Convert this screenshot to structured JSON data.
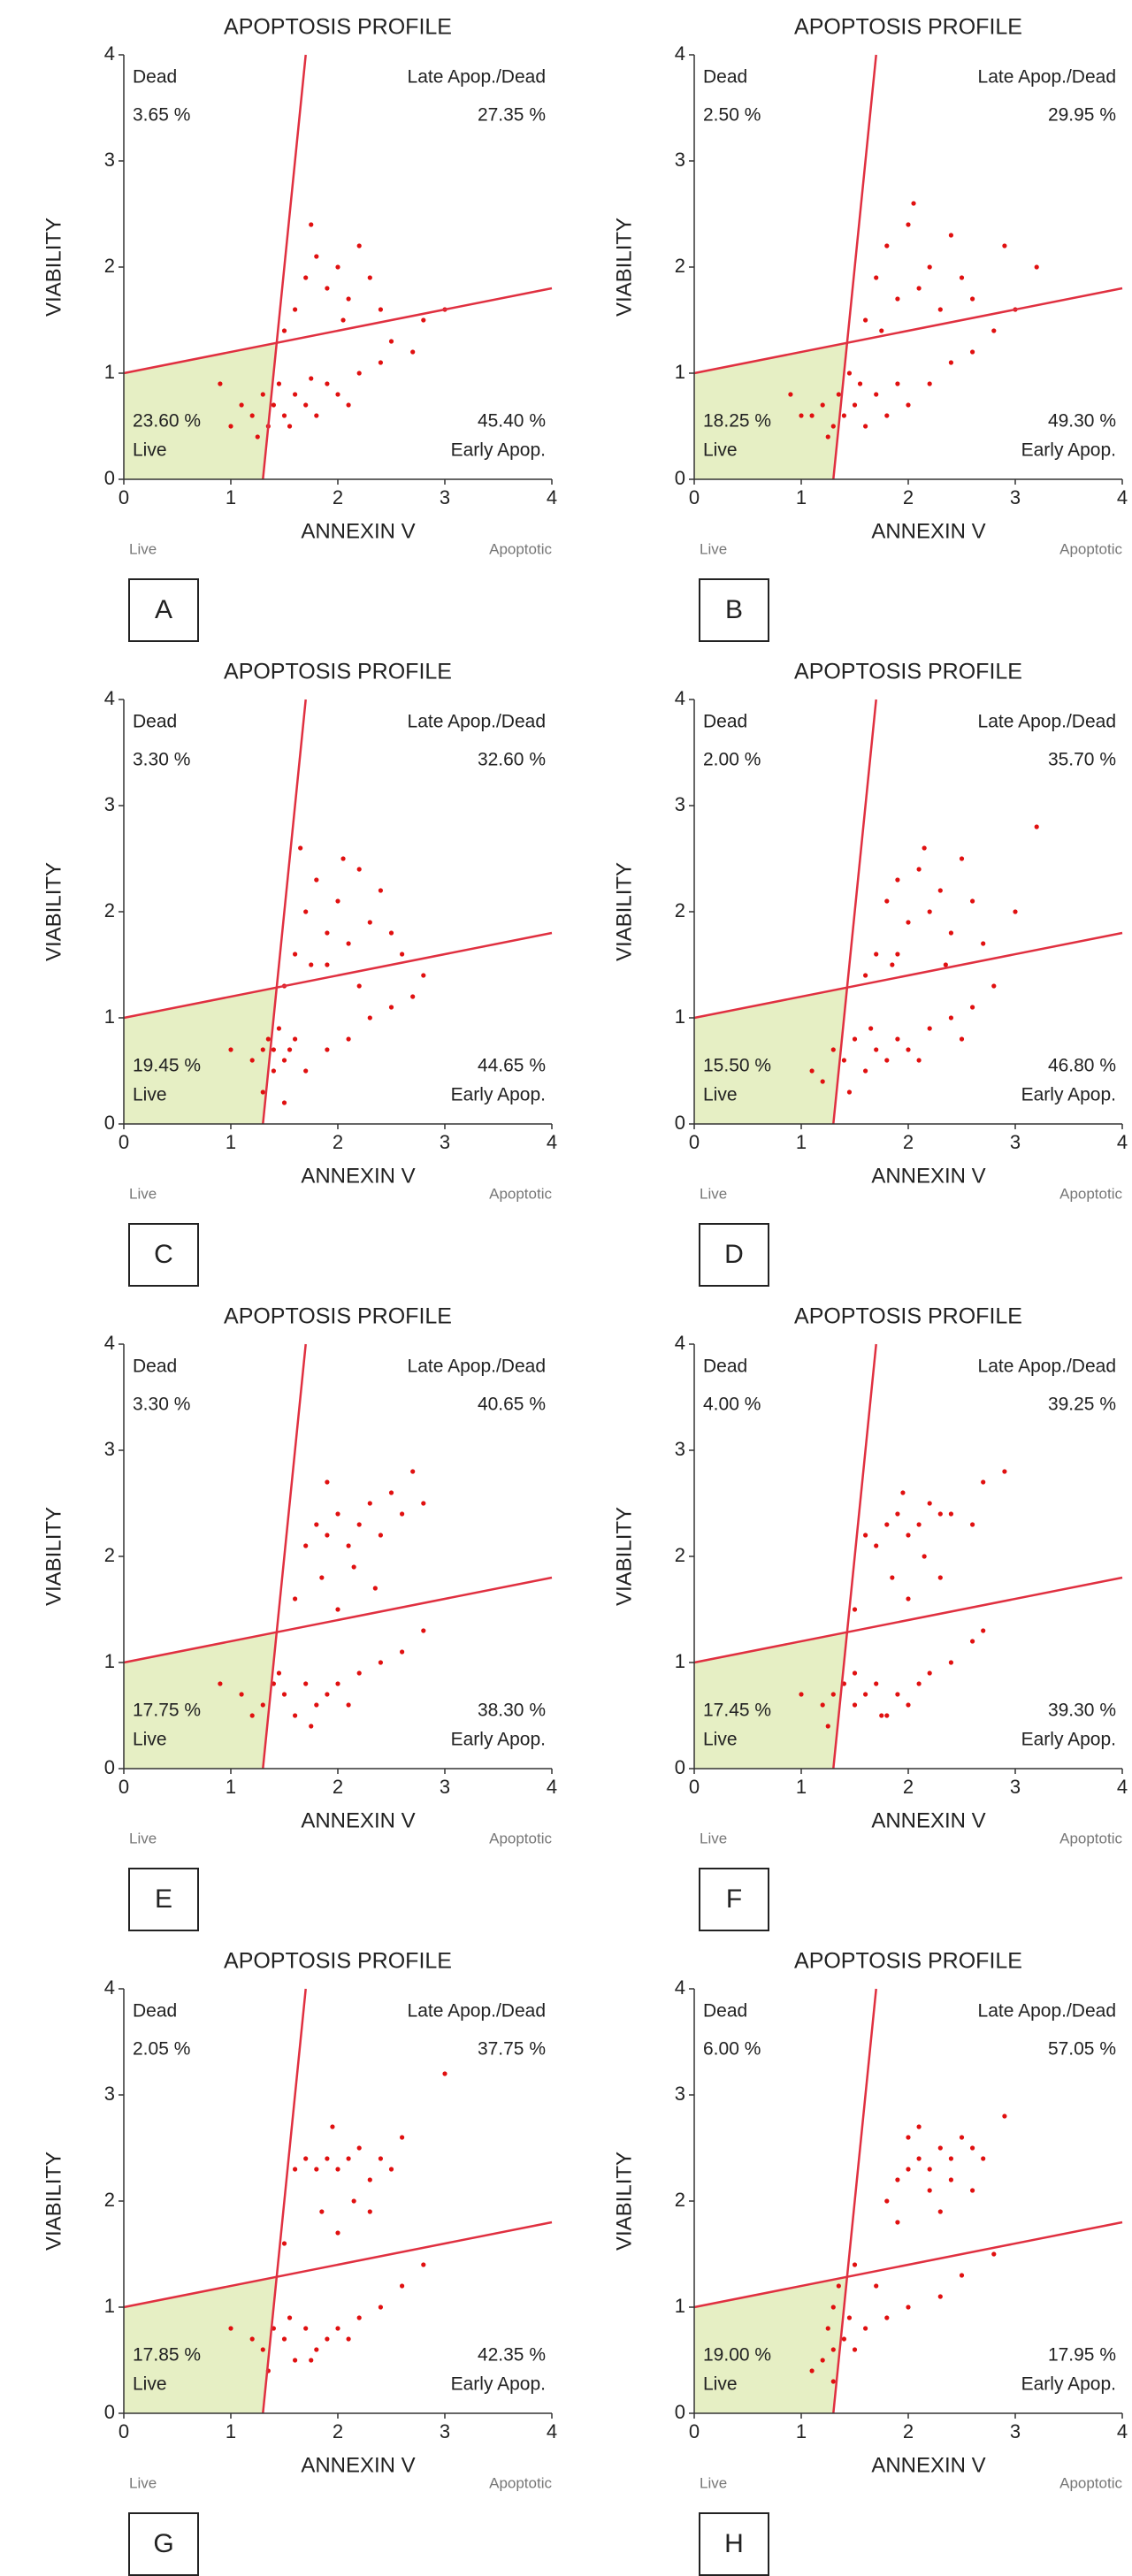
{
  "chart_data": [
    {
      "type": "scatter",
      "title": "APOPTOSIS PROFILE",
      "x_label": "ANNEXIN V",
      "y_label": "VIABILITY",
      "x_end_labels": [
        "Live",
        "Apoptotic"
      ],
      "panel_label": "A",
      "quadrant_names": [
        "Dead",
        "Late Apop./Dead",
        "Live",
        "Early Apop."
      ],
      "quadrant_values": [
        3.65,
        27.35,
        23.6,
        45.4
      ],
      "quadrant_value_labels": [
        "3.65 %",
        "27.35 %",
        "23.60 %",
        "45.40 %"
      ],
      "color": "#e01010",
      "gate_color": "#e03040",
      "live_color": "#e6efc4",
      "xlim": [
        0,
        4
      ],
      "ylim": [
        0,
        4
      ],
      "xticks": [
        0,
        1,
        2,
        3,
        4
      ],
      "yticks": [
        0,
        1,
        2,
        3,
        4
      ],
      "gates": [
        {
          "x": [
            1.3,
            1.7
          ],
          "y": [
            0,
            4
          ]
        },
        {
          "x": [
            0,
            4
          ],
          "y": [
            1,
            1.8
          ]
        }
      ],
      "x": [
        1.1,
        1.2,
        1.3,
        1.35,
        1.4,
        1.45,
        1.5,
        1.6,
        1.7,
        1.8,
        1.9,
        2.0,
        2.2,
        2.4,
        1.25,
        1.55,
        1.75,
        2.1,
        1.6,
        1.7,
        1.8,
        1.9,
        2.0,
        2.1,
        2.2,
        2.3,
        2.4,
        1.5,
        1.75,
        2.05,
        2.5,
        2.7,
        0.9,
        1.0,
        2.8,
        3.0
      ],
      "y": [
        0.7,
        0.6,
        0.8,
        0.5,
        0.7,
        0.9,
        0.6,
        0.8,
        0.7,
        0.6,
        0.9,
        0.8,
        1.0,
        1.1,
        0.4,
        0.5,
        0.95,
        0.7,
        1.6,
        1.9,
        2.1,
        1.8,
        2.0,
        1.7,
        2.2,
        1.9,
        1.6,
        1.4,
        2.4,
        1.5,
        1.3,
        1.2,
        0.9,
        0.5,
        1.5,
        1.6
      ]
    },
    {
      "type": "scatter",
      "title": "APOPTOSIS PROFILE",
      "x_label": "ANNEXIN V",
      "y_label": "VIABILITY",
      "x_end_labels": [
        "Live",
        "Apoptotic"
      ],
      "panel_label": "B",
      "quadrant_names": [
        "Dead",
        "Late Apop./Dead",
        "Live",
        "Early Apop."
      ],
      "quadrant_values": [
        2.5,
        29.95,
        18.25,
        49.3
      ],
      "quadrant_value_labels": [
        "2.50 %",
        "29.95 %",
        "18.25 %",
        "49.30 %"
      ],
      "color": "#e01010",
      "gate_color": "#e03040",
      "live_color": "#e6efc4",
      "xlim": [
        0,
        4
      ],
      "ylim": [
        0,
        4
      ],
      "xticks": [
        0,
        1,
        2,
        3,
        4
      ],
      "yticks": [
        0,
        1,
        2,
        3,
        4
      ],
      "gates": [
        {
          "x": [
            1.3,
            1.7
          ],
          "y": [
            0,
            4
          ]
        },
        {
          "x": [
            0,
            4
          ],
          "y": [
            1,
            1.8
          ]
        }
      ],
      "x": [
        1.1,
        1.2,
        1.3,
        1.35,
        1.4,
        1.5,
        1.6,
        1.7,
        1.8,
        1.9,
        2.0,
        2.2,
        2.4,
        2.6,
        2.8,
        3.0,
        1.25,
        1.55,
        1.6,
        1.7,
        1.8,
        1.9,
        2.0,
        2.1,
        2.2,
        2.3,
        2.4,
        2.5,
        1.75,
        2.05,
        2.6,
        2.9,
        0.9,
        1.0,
        3.2,
        1.45
      ],
      "y": [
        0.6,
        0.7,
        0.5,
        0.8,
        0.6,
        0.7,
        0.5,
        0.8,
        0.6,
        0.9,
        0.7,
        0.9,
        1.1,
        1.2,
        1.4,
        1.6,
        0.4,
        0.9,
        1.5,
        1.9,
        2.2,
        1.7,
        2.4,
        1.8,
        2.0,
        1.6,
        2.3,
        1.9,
        1.4,
        2.6,
        1.7,
        2.2,
        0.8,
        0.6,
        2.0,
        1.0
      ]
    },
    {
      "type": "scatter",
      "title": "APOPTOSIS PROFILE",
      "x_label": "ANNEXIN V",
      "y_label": "VIABILITY",
      "x_end_labels": [
        "Live",
        "Apoptotic"
      ],
      "panel_label": "C",
      "quadrant_names": [
        "Dead",
        "Late Apop./Dead",
        "Live",
        "Early Apop."
      ],
      "quadrant_values": [
        3.3,
        32.6,
        19.45,
        44.65
      ],
      "quadrant_value_labels": [
        "3.30 %",
        "32.60 %",
        "19.45 %",
        "44.65 %"
      ],
      "color": "#e01010",
      "gate_color": "#e03040",
      "live_color": "#e6efc4",
      "xlim": [
        0,
        4
      ],
      "ylim": [
        0,
        4
      ],
      "xticks": [
        0,
        1,
        2,
        3,
        4
      ],
      "yticks": [
        0,
        1,
        2,
        3,
        4
      ],
      "gates": [
        {
          "x": [
            1.3,
            1.7
          ],
          "y": [
            0,
            4
          ]
        },
        {
          "x": [
            0,
            4
          ],
          "y": [
            1,
            1.8
          ]
        }
      ],
      "x": [
        1.2,
        1.3,
        1.35,
        1.4,
        1.4,
        1.45,
        1.5,
        1.55,
        1.6,
        1.7,
        1.9,
        2.1,
        2.3,
        2.5,
        2.7,
        1.0,
        1.3,
        1.5,
        1.6,
        1.7,
        1.8,
        1.9,
        2.0,
        2.1,
        2.2,
        2.3,
        2.4,
        2.5,
        1.75,
        2.05,
        2.6,
        2.8,
        1.5,
        1.9,
        2.2,
        1.65
      ],
      "y": [
        0.6,
        0.7,
        0.8,
        0.5,
        0.7,
        0.9,
        0.6,
        0.7,
        0.8,
        0.5,
        0.7,
        0.8,
        1.0,
        1.1,
        1.2,
        0.7,
        0.3,
        0.2,
        1.6,
        2.0,
        2.3,
        1.8,
        2.1,
        1.7,
        2.4,
        1.9,
        2.2,
        1.8,
        1.5,
        2.5,
        1.6,
        1.4,
        1.3,
        1.5,
        1.3,
        2.6
      ]
    },
    {
      "type": "scatter",
      "title": "APOPTOSIS PROFILE",
      "x_label": "ANNEXIN V",
      "y_label": "VIABILITY",
      "x_end_labels": [
        "Live",
        "Apoptotic"
      ],
      "panel_label": "D",
      "quadrant_names": [
        "Dead",
        "Late Apop./Dead",
        "Live",
        "Early Apop."
      ],
      "quadrant_values": [
        2.0,
        35.7,
        15.5,
        46.8
      ],
      "quadrant_value_labels": [
        "2.00 %",
        "35.70 %",
        "15.50 %",
        "46.80 %"
      ],
      "color": "#e01010",
      "gate_color": "#e03040",
      "live_color": "#e6efc4",
      "xlim": [
        0,
        4
      ],
      "ylim": [
        0,
        4
      ],
      "xticks": [
        0,
        1,
        2,
        3,
        4
      ],
      "yticks": [
        0,
        1,
        2,
        3,
        4
      ],
      "gates": [
        {
          "x": [
            1.3,
            1.7
          ],
          "y": [
            0,
            4
          ]
        },
        {
          "x": [
            0,
            4
          ],
          "y": [
            1,
            1.8
          ]
        }
      ],
      "x": [
        1.1,
        1.3,
        1.4,
        1.5,
        1.6,
        1.7,
        1.8,
        1.9,
        2.0,
        2.2,
        2.4,
        2.6,
        2.8,
        1.2,
        1.45,
        1.65,
        2.1,
        2.5,
        1.7,
        1.8,
        1.9,
        2.0,
        2.1,
        2.2,
        2.3,
        2.4,
        2.5,
        2.6,
        1.85,
        2.15,
        2.7,
        3.0,
        1.6,
        1.9,
        2.35,
        3.2
      ],
      "y": [
        0.5,
        0.7,
        0.6,
        0.8,
        0.5,
        0.7,
        0.6,
        0.8,
        0.7,
        0.9,
        1.0,
        1.1,
        1.3,
        0.4,
        0.3,
        0.9,
        0.6,
        0.8,
        1.6,
        2.1,
        2.3,
        1.9,
        2.4,
        2.0,
        2.2,
        1.8,
        2.5,
        2.1,
        1.5,
        2.6,
        1.7,
        2.0,
        1.4,
        1.6,
        1.5,
        2.8
      ]
    },
    {
      "type": "scatter",
      "title": "APOPTOSIS PROFILE",
      "x_label": "ANNEXIN V",
      "y_label": "VIABILITY",
      "x_end_labels": [
        "Live",
        "Apoptotic"
      ],
      "panel_label": "E",
      "quadrant_names": [
        "Dead",
        "Late Apop./Dead",
        "Live",
        "Early Apop."
      ],
      "quadrant_values": [
        3.3,
        40.65,
        17.75,
        38.3
      ],
      "quadrant_value_labels": [
        "3.30 %",
        "40.65 %",
        "17.75 %",
        "38.30 %"
      ],
      "color": "#e01010",
      "gate_color": "#e03040",
      "live_color": "#e6efc4",
      "xlim": [
        0,
        4
      ],
      "ylim": [
        0,
        4
      ],
      "xticks": [
        0,
        1,
        2,
        3,
        4
      ],
      "yticks": [
        0,
        1,
        2,
        3,
        4
      ],
      "gates": [
        {
          "x": [
            1.3,
            1.7
          ],
          "y": [
            0,
            4
          ]
        },
        {
          "x": [
            0,
            4
          ],
          "y": [
            1,
            1.8
          ]
        }
      ],
      "x": [
        1.1,
        1.3,
        1.4,
        1.5,
        1.6,
        1.7,
        1.8,
        1.9,
        2.0,
        2.2,
        2.4,
        2.6,
        1.2,
        1.45,
        1.75,
        2.1,
        2.8,
        0.9,
        1.7,
        1.8,
        1.9,
        2.0,
        2.1,
        2.2,
        2.3,
        2.4,
        2.5,
        2.6,
        1.85,
        2.15,
        2.7,
        2.8,
        1.6,
        2.0,
        2.35,
        1.9
      ],
      "y": [
        0.7,
        0.6,
        0.8,
        0.7,
        0.5,
        0.8,
        0.6,
        0.7,
        0.8,
        0.9,
        1.0,
        1.1,
        0.5,
        0.9,
        0.4,
        0.6,
        1.3,
        0.8,
        2.1,
        2.3,
        2.2,
        2.4,
        2.1,
        2.3,
        2.5,
        2.2,
        2.6,
        2.4,
        1.8,
        1.9,
        2.8,
        2.5,
        1.6,
        1.5,
        1.7,
        2.7
      ]
    },
    {
      "type": "scatter",
      "title": "APOPTOSIS PROFILE",
      "x_label": "ANNEXIN V",
      "y_label": "VIABILITY",
      "x_end_labels": [
        "Live",
        "Apoptotic"
      ],
      "panel_label": "F",
      "quadrant_names": [
        "Dead",
        "Late Apop./Dead",
        "Live",
        "Early Apop."
      ],
      "quadrant_values": [
        4.0,
        39.25,
        17.45,
        39.3
      ],
      "quadrant_value_labels": [
        "4.00 %",
        "39.25 %",
        "17.45 %",
        "39.30 %"
      ],
      "color": "#e01010",
      "gate_color": "#e03040",
      "live_color": "#e6efc4",
      "xlim": [
        0,
        4
      ],
      "ylim": [
        0,
        4
      ],
      "xticks": [
        0,
        1,
        2,
        3,
        4
      ],
      "yticks": [
        0,
        1,
        2,
        3,
        4
      ],
      "gates": [
        {
          "x": [
            1.3,
            1.7
          ],
          "y": [
            0,
            4
          ]
        },
        {
          "x": [
            0,
            4
          ],
          "y": [
            1,
            1.8
          ]
        }
      ],
      "x": [
        1.2,
        1.3,
        1.4,
        1.5,
        1.6,
        1.7,
        1.8,
        1.9,
        2.0,
        2.2,
        2.4,
        2.6,
        1.25,
        1.5,
        1.75,
        2.1,
        2.7,
        1.0,
        1.6,
        1.7,
        1.8,
        1.9,
        2.0,
        2.1,
        2.2,
        2.3,
        2.4,
        2.6,
        1.85,
        2.15,
        2.7,
        2.9,
        1.5,
        2.0,
        2.3,
        1.95
      ],
      "y": [
        0.6,
        0.7,
        0.8,
        0.6,
        0.7,
        0.8,
        0.5,
        0.7,
        0.6,
        0.9,
        1.0,
        1.2,
        0.4,
        0.9,
        0.5,
        0.8,
        1.3,
        0.7,
        2.2,
        2.1,
        2.3,
        2.4,
        2.2,
        2.3,
        2.5,
        2.4,
        2.4,
        2.3,
        1.8,
        2.0,
        2.7,
        2.8,
        1.5,
        1.6,
        1.8,
        2.6
      ]
    },
    {
      "type": "scatter",
      "title": "APOPTOSIS PROFILE",
      "x_label": "ANNEXIN V",
      "y_label": "VIABILITY",
      "x_end_labels": [
        "Live",
        "Apoptotic"
      ],
      "panel_label": "G",
      "quadrant_names": [
        "Dead",
        "Late Apop./Dead",
        "Live",
        "Early Apop."
      ],
      "quadrant_values": [
        2.05,
        37.75,
        17.85,
        42.35
      ],
      "quadrant_value_labels": [
        "2.05 %",
        "37.75 %",
        "17.85 %",
        "42.35 %"
      ],
      "color": "#e01010",
      "gate_color": "#e03040",
      "live_color": "#e6efc4",
      "xlim": [
        0,
        4
      ],
      "ylim": [
        0,
        4
      ],
      "xticks": [
        0,
        1,
        2,
        3,
        4
      ],
      "yticks": [
        0,
        1,
        2,
        3,
        4
      ],
      "gates": [
        {
          "x": [
            1.3,
            1.7
          ],
          "y": [
            0,
            4
          ]
        },
        {
          "x": [
            0,
            4
          ],
          "y": [
            1,
            1.8
          ]
        }
      ],
      "x": [
        1.2,
        1.3,
        1.4,
        1.5,
        1.6,
        1.7,
        1.8,
        1.9,
        2.0,
        2.2,
        2.4,
        2.6,
        1.35,
        1.55,
        1.75,
        2.1,
        2.8,
        1.0,
        1.6,
        1.7,
        1.8,
        1.9,
        2.0,
        2.1,
        2.2,
        2.3,
        2.4,
        2.5,
        1.85,
        2.15,
        2.6,
        3.0,
        1.5,
        2.0,
        2.3,
        1.95
      ],
      "y": [
        0.7,
        0.6,
        0.8,
        0.7,
        0.5,
        0.8,
        0.6,
        0.7,
        0.8,
        0.9,
        1.0,
        1.2,
        0.4,
        0.9,
        0.5,
        0.7,
        1.4,
        0.8,
        2.3,
        2.4,
        2.3,
        2.4,
        2.3,
        2.4,
        2.5,
        2.2,
        2.4,
        2.3,
        1.9,
        2.0,
        2.6,
        3.2,
        1.6,
        1.7,
        1.9,
        2.7
      ]
    },
    {
      "type": "scatter",
      "title": "APOPTOSIS PROFILE",
      "x_label": "ANNEXIN V",
      "y_label": "VIABILITY",
      "x_end_labels": [
        "Live",
        "Apoptotic"
      ],
      "panel_label": "H",
      "quadrant_names": [
        "Dead",
        "Late Apop./Dead",
        "Live",
        "Early Apop."
      ],
      "quadrant_values": [
        6.0,
        57.05,
        19.0,
        17.95
      ],
      "quadrant_value_labels": [
        "6.00 %",
        "57.05 %",
        "19.00 %",
        "17.95 %"
      ],
      "color": "#e01010",
      "gate_color": "#e03040",
      "live_color": "#e6efc4",
      "xlim": [
        0,
        4
      ],
      "ylim": [
        0,
        4
      ],
      "xticks": [
        0,
        1,
        2,
        3,
        4
      ],
      "yticks": [
        0,
        1,
        2,
        3,
        4
      ],
      "gates": [
        {
          "x": [
            1.3,
            1.7
          ],
          "y": [
            0,
            4
          ]
        },
        {
          "x": [
            0,
            4
          ],
          "y": [
            1,
            1.8
          ]
        }
      ],
      "x": [
        1.2,
        1.25,
        1.3,
        1.3,
        1.35,
        1.4,
        1.45,
        1.5,
        1.6,
        1.8,
        2.0,
        2.3,
        1.1,
        1.3,
        1.5,
        2.5,
        2.8,
        1.7,
        1.9,
        2.0,
        2.1,
        2.2,
        2.3,
        2.4,
        2.5,
        2.6,
        2.2,
        2.4,
        1.8,
        2.1,
        2.7,
        2.9,
        1.9,
        2.3,
        2.6,
        2.0
      ],
      "y": [
        0.5,
        0.8,
        1.0,
        0.6,
        1.2,
        0.7,
        0.9,
        0.6,
        0.8,
        0.9,
        1.0,
        1.1,
        0.4,
        0.3,
        1.4,
        1.3,
        1.5,
        1.2,
        2.2,
        2.3,
        2.4,
        2.3,
        2.5,
        2.4,
        2.6,
        2.5,
        2.1,
        2.2,
        2.0,
        2.7,
        2.4,
        2.8,
        1.8,
        1.9,
        2.1,
        2.6
      ]
    }
  ]
}
